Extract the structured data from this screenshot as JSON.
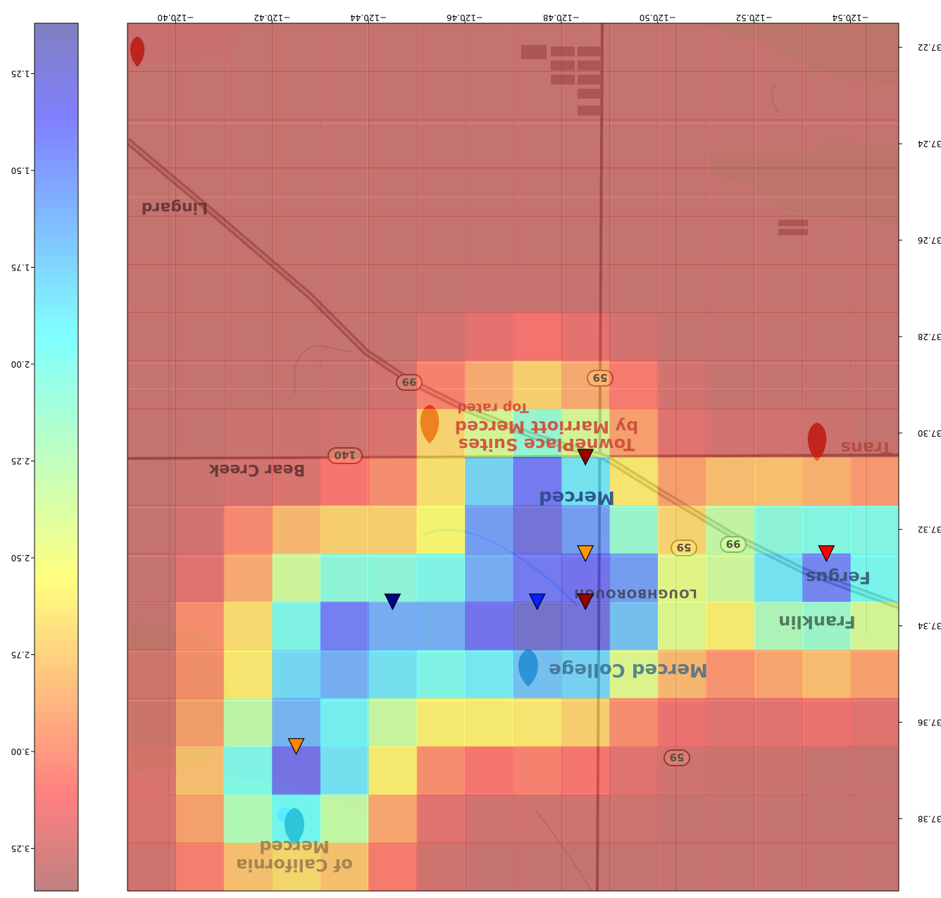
{
  "map": {
    "lon_ticks": [
      "−120.40",
      "−120.42",
      "−120.44",
      "−120.46",
      "−120.48",
      "−120.50",
      "−120.52",
      "−120.54"
    ],
    "lat_ticks": [
      "37.22",
      "37.24",
      "37.26",
      "37.28",
      "37.30",
      "37.32",
      "37.34",
      "37.36",
      "37.38"
    ],
    "lon_range": [
      -120.39,
      -120.55
    ],
    "lat_range": [
      37.215,
      37.395
    ],
    "place_labels": {
      "lingard": "Lingard",
      "bear_creek": "Bear Creek",
      "towneplace_line1": "TownePlace Suites",
      "towneplace_line2": "by Marriott Merced",
      "top_rated": "Top rated",
      "trans": "Trans",
      "merced": "Merced",
      "loughborough": "LOUGHBOROUGH",
      "ferguson": "Fergus",
      "franklin": "Franklin",
      "merced_college": "Merced College",
      "uc_merced_line1": "of California",
      "uc_merced_line2": "Merced",
      "hwy_99_a": "99",
      "hwy_99_b": "99",
      "hwy_140": "140",
      "hwy_59_a": "59",
      "hwy_59_b": "59",
      "hwy_59_c": "59"
    }
  },
  "colorbar": {
    "ticks": [
      "1.25",
      "1.50",
      "1.75",
      "2.00",
      "2.25",
      "2.50",
      "2.75",
      "3.00",
      "3.25"
    ],
    "range": [
      1.12,
      3.36
    ],
    "colormap": "jet",
    "alpha": 0.5
  },
  "chart_data": {
    "type": "heatmap",
    "x_axis": "longitude",
    "y_axis": "latitude",
    "grid_lon_start": -120.39,
    "grid_lat_start": 37.215,
    "cell_size_deg": 0.01,
    "values": [
      [
        3.3,
        3.3,
        3.3,
        3.3,
        3.3,
        3.3,
        3.3,
        3.3,
        3.3,
        3.3,
        3.3,
        3.3,
        3.3,
        3.3,
        3.3,
        3.3
      ],
      [
        3.3,
        3.3,
        3.3,
        3.3,
        3.3,
        3.3,
        3.3,
        3.3,
        3.3,
        3.3,
        3.3,
        3.3,
        3.3,
        3.3,
        3.3,
        3.3
      ],
      [
        3.3,
        3.3,
        3.3,
        3.3,
        3.3,
        3.3,
        3.3,
        3.3,
        3.3,
        3.3,
        3.3,
        3.3,
        3.3,
        3.3,
        3.3,
        3.3
      ],
      [
        3.3,
        3.3,
        3.3,
        3.3,
        3.3,
        3.3,
        3.3,
        3.3,
        3.3,
        3.3,
        3.3,
        3.3,
        3.3,
        3.3,
        3.3,
        3.3
      ],
      [
        3.3,
        3.3,
        3.3,
        3.3,
        3.3,
        3.3,
        3.3,
        3.3,
        3.3,
        3.3,
        3.3,
        3.3,
        3.3,
        3.3,
        3.3,
        3.3
      ],
      [
        3.3,
        3.3,
        3.3,
        3.3,
        3.3,
        3.3,
        3.3,
        3.29,
        3.29,
        3.29,
        3.3,
        3.3,
        3.3,
        3.3,
        3.3,
        3.3
      ],
      [
        3.3,
        3.3,
        3.3,
        3.3,
        3.3,
        3.3,
        3.25,
        3.18,
        3.12,
        3.18,
        3.25,
        3.3,
        3.3,
        3.3,
        3.3,
        3.3
      ],
      [
        3.3,
        3.3,
        3.3,
        3.3,
        3.3,
        3.26,
        3.05,
        2.88,
        2.72,
        2.88,
        3.08,
        3.25,
        3.3,
        3.3,
        3.3,
        3.3
      ],
      [
        3.3,
        3.3,
        3.28,
        3.28,
        3.26,
        3.22,
        2.7,
        2.38,
        2.08,
        2.38,
        2.92,
        3.2,
        3.25,
        3.25,
        3.28,
        3.3
      ],
      [
        3.3,
        3.28,
        3.25,
        3.22,
        3.1,
        3.0,
        2.65,
        1.78,
        1.4,
        1.85,
        2.62,
        2.92,
        2.8,
        2.78,
        2.85,
        2.95
      ],
      [
        3.3,
        3.25,
        3.02,
        2.82,
        2.72,
        2.72,
        2.55,
        1.55,
        1.27,
        1.55,
        2.1,
        2.7,
        2.3,
        2.05,
        2.0,
        2.0
      ],
      [
        3.3,
        3.2,
        2.88,
        2.35,
        2.05,
        2.05,
        1.98,
        1.62,
        1.4,
        1.35,
        1.55,
        2.45,
        2.35,
        1.85,
        1.45,
        1.95
      ],
      [
        3.3,
        3.0,
        2.66,
        1.98,
        1.42,
        1.62,
        1.62,
        1.35,
        1.22,
        1.28,
        1.7,
        2.42,
        2.6,
        2.2,
        2.12,
        2.38
      ],
      [
        3.24,
        3.0,
        2.62,
        1.8,
        1.62,
        1.84,
        1.98,
        1.88,
        1.7,
        1.78,
        2.42,
        2.82,
        2.98,
        2.9,
        2.8,
        2.92
      ],
      [
        3.25,
        2.94,
        2.28,
        1.65,
        1.9,
        2.32,
        2.6,
        2.6,
        2.62,
        2.72,
        3.0,
        3.15,
        3.2,
        3.2,
        3.15,
        3.2
      ],
      [
        3.22,
        2.8,
        1.98,
        1.32,
        1.84,
        2.6,
        3.0,
        3.1,
        3.05,
        3.1,
        3.2,
        3.26,
        3.28,
        3.28,
        3.3,
        3.3
      ],
      [
        3.22,
        2.94,
        2.22,
        1.92,
        2.3,
        2.9,
        3.2,
        3.26,
        3.26,
        3.26,
        3.26,
        3.3,
        3.3,
        3.3,
        3.3,
        3.3
      ],
      [
        3.26,
        3.08,
        2.8,
        2.7,
        2.8,
        3.08,
        3.26,
        3.3,
        3.3,
        3.3,
        3.3,
        3.3,
        3.3,
        3.3,
        3.3,
        3.3
      ]
    ],
    "markers": [
      {
        "lon": -120.485,
        "lat": 37.305,
        "color": "#990000"
      },
      {
        "lon": -120.535,
        "lat": 37.325,
        "color": "#ff0000"
      },
      {
        "lon": -120.485,
        "lat": 37.325,
        "color": "#ff9900"
      },
      {
        "lon": -120.425,
        "lat": 37.365,
        "color": "#ff8800"
      },
      {
        "lon": -120.445,
        "lat": 37.335,
        "color": "#000088"
      },
      {
        "lon": -120.475,
        "lat": 37.335,
        "color": "#0022ff"
      },
      {
        "lon": -120.485,
        "lat": 37.335,
        "color": "#990000"
      }
    ]
  }
}
